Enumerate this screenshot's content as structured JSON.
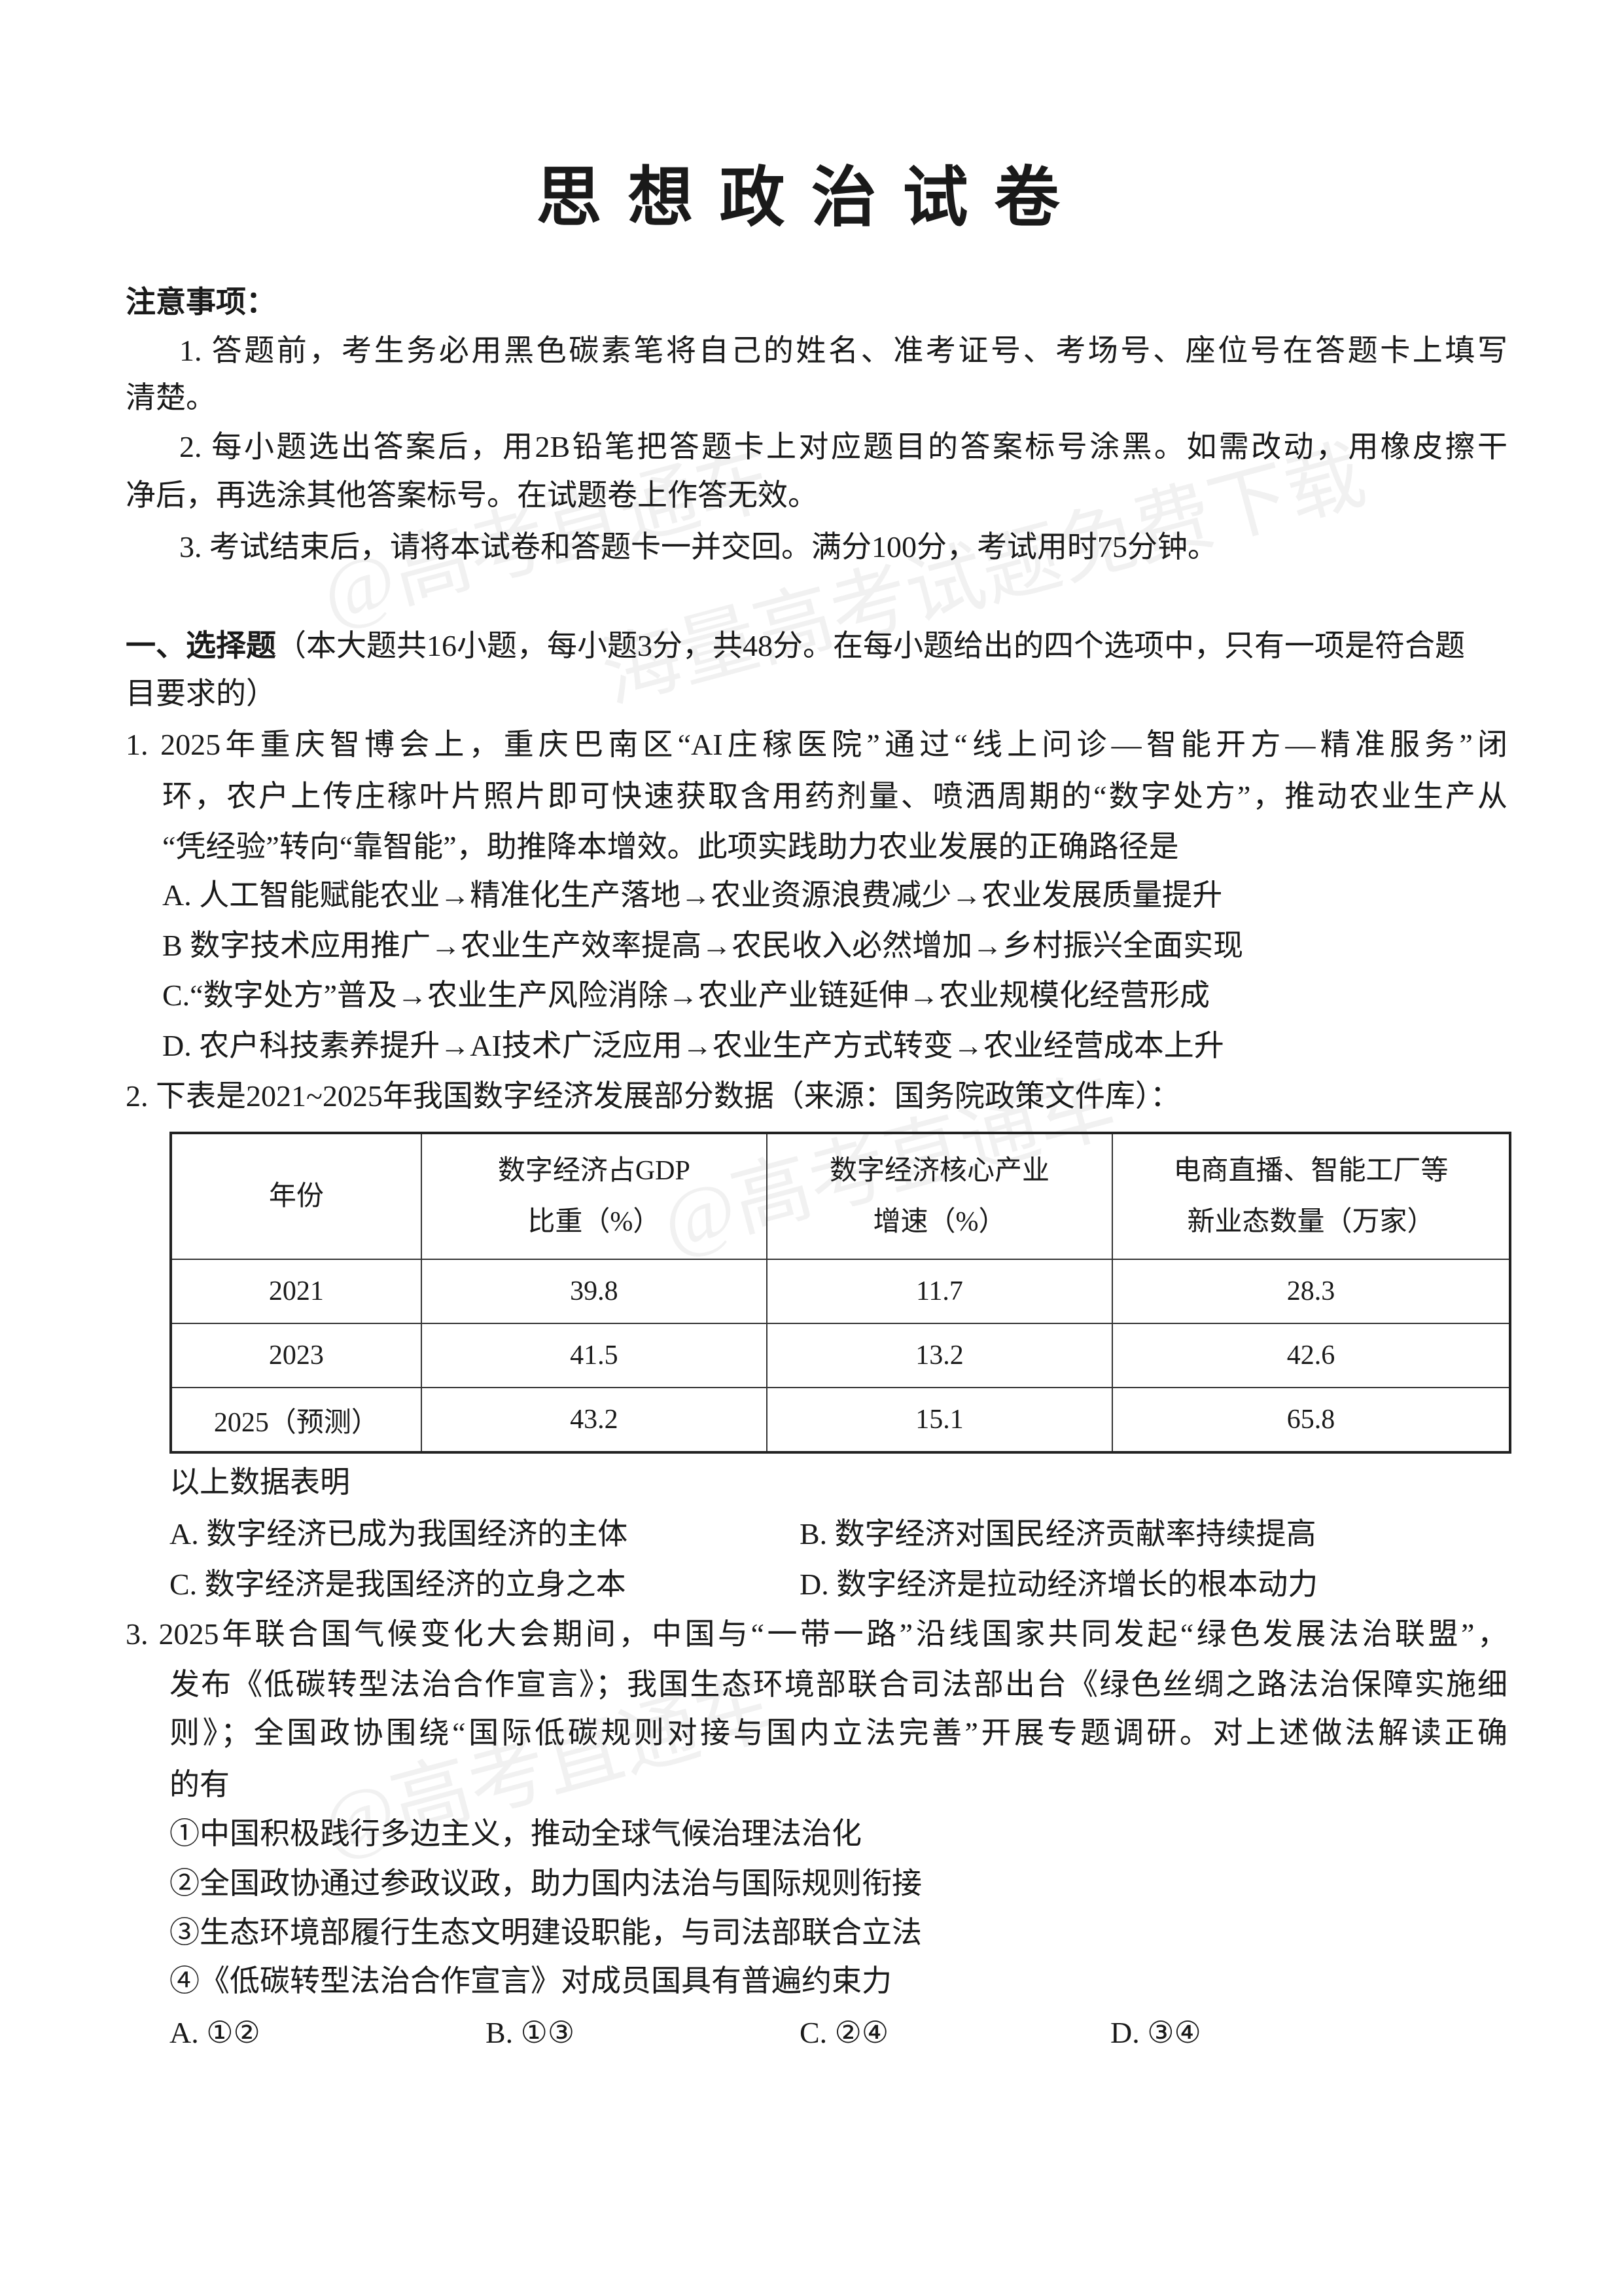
{
  "title": "思想政治试卷",
  "notes": {
    "heading": "注意事项：",
    "lines": [
      "1. 答题前，考生务必用黑色碳素笔将自己的姓名、准考证号、考场号、座位号在答题卡上填写",
      "清楚。",
      "2. 每小题选出答案后，用2B铅笔把答题卡上对应题目的答案标号涂黑。如需改动，用橡皮擦干",
      "净后，再选涂其他答案标号。在试题卷上作答无效。",
      "3. 考试结束后，请将本试卷和答题卡一并交回。满分100分，考试用时75分钟。"
    ]
  },
  "section1": {
    "heading": "一、选择题",
    "desc_line1": "（本大题共16小题，每小题3分，共48分。在每小题给出的四个选项中，只有一项是符合题",
    "desc_line2": "目要求的）"
  },
  "q1": {
    "stem": [
      "1. 2025年重庆智博会上，重庆巴南区“AI庄稼医院”通过“线上问诊—智能开方—精准服务”闭",
      "环，农户上传庄稼叶片照片即可快速获取含用药剂量、喷洒周期的“数字处方”，推动农业生产从",
      "“凭经验”转向“靠智能”，助推降本增效。此项实践助力农业发展的正确路径是"
    ],
    "options": [
      "A. 人工智能赋能农业→精准化生产落地→农业资源浪费减少→农业发展质量提升",
      "B  数字技术应用推广→农业生产效率提高→农民收入必然增加→乡村振兴全面实现",
      "C.“数字处方”普及→农业生产风险消除→农业产业链延伸→农业规模化经营形成",
      "D. 农户科技素养提升→AI技术广泛应用→农业生产方式转变→农业经营成本上升"
    ]
  },
  "q2": {
    "stem": "2. 下表是2021~2025年我国数字经济发展部分数据（来源：国务院政策文件库）：",
    "table": {
      "headers": [
        [
          "年份"
        ],
        [
          "数字经济占GDP",
          "比重（%）"
        ],
        [
          "数字经济核心产业",
          "增速（%）"
        ],
        [
          "电商直播、智能工厂等",
          "新业态数量（万家）"
        ]
      ],
      "rows": [
        [
          "2021",
          "39.8",
          "11.7",
          "28.3"
        ],
        [
          "2023",
          "41.5",
          "13.2",
          "42.6"
        ],
        [
          "2025（预测）",
          "43.2",
          "15.1",
          "65.8"
        ]
      ]
    },
    "lead": "以上数据表明",
    "options": [
      "A. 数字经济已成为我国经济的主体",
      "B. 数字经济对国民经济贡献率持续提高",
      "C. 数字经济是我国经济的立身之本",
      "D. 数字经济是拉动经济增长的根本动力"
    ]
  },
  "q3": {
    "stem": [
      "3. 2025年联合国气候变化大会期间，中国与“一带一路”沿线国家共同发起“绿色发展法治联盟”，",
      "发布《低碳转型法治合作宣言》；我国生态环境部联合司法部出台《绿色丝绸之路法治保障实施细",
      "则》；全国政协围绕“国际低碳规则对接与国内立法完善”开展专题调研。对上述做法解读正确",
      "的有"
    ],
    "statements": [
      "①中国积极践行多边主义，推动全球气候治理法治化",
      "②全国政协通过参政议政，助力国内法治与国际规则衔接",
      "③生态环境部履行生态文明建设职能，与司法部联合立法",
      "④《低碳转型法治合作宣言》对成员国具有普遍约束力"
    ],
    "options": [
      "A. ①②",
      "B. ①③",
      "C. ②④",
      "D. ③④"
    ]
  },
  "watermark": [
    "@高考直通车",
    "海量高考试题免费下载"
  ]
}
